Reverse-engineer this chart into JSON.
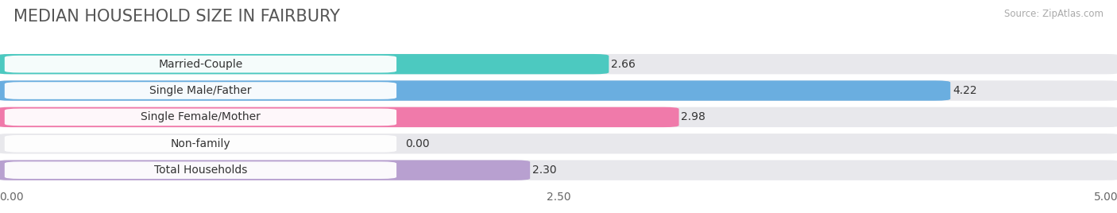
{
  "title": "MEDIAN HOUSEHOLD SIZE IN FAIRBURY",
  "source": "Source: ZipAtlas.com",
  "categories": [
    "Married-Couple",
    "Single Male/Father",
    "Single Female/Mother",
    "Non-family",
    "Total Households"
  ],
  "values": [
    2.66,
    4.22,
    2.98,
    0.0,
    2.3
  ],
  "bar_colors": [
    "#4cc9c0",
    "#6aaee0",
    "#f07aaa",
    "#f5c99a",
    "#b8a0d0"
  ],
  "bar_bg_color": "#e8e8ec",
  "xlim": [
    0,
    5.0
  ],
  "xticks": [
    0.0,
    2.5,
    5.0
  ],
  "xtick_labels": [
    "0.00",
    "2.50",
    "5.00"
  ],
  "title_fontsize": 15,
  "label_fontsize": 10,
  "value_fontsize": 10,
  "background_color": "#ffffff",
  "title_color": "#555555",
  "source_color": "#aaaaaa"
}
